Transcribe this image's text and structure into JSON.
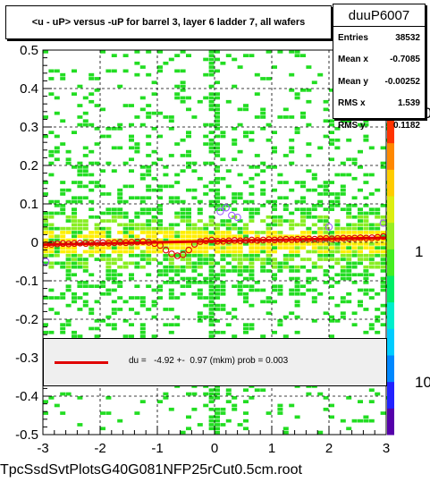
{
  "chart_data": {
    "type": "scatter",
    "title": "<u - uP>       versus  -uP for barrel 3, layer 6 ladder 7, all wafers",
    "xlim": [
      -3,
      3
    ],
    "ylim": [
      -0.5,
      0.5
    ],
    "x_ticks": [
      "-3",
      "-2",
      "-1",
      "0",
      "1",
      "2",
      "3"
    ],
    "y_ticks": [
      "-0.5",
      "-0.4",
      "-0.3",
      "-0.2",
      "-0.1",
      "0",
      "0.1",
      "0.2",
      "0.3",
      "0.4",
      "0.5"
    ],
    "z_scale": "log",
    "z_ticks": [
      "10",
      "1",
      "10"
    ],
    "grid": true,
    "profile": {
      "x": [
        -2.95,
        -2.85,
        -2.75,
        -2.65,
        -2.55,
        -2.45,
        -2.35,
        -2.25,
        -2.15,
        -2.05,
        -1.95,
        -1.85,
        -1.75,
        -1.65,
        -1.55,
        -1.45,
        -1.35,
        -1.25,
        -1.15,
        -1.05,
        -0.95,
        -0.85,
        -0.75,
        -0.65,
        -0.55,
        -0.45,
        -0.35,
        -0.25,
        -0.15,
        -0.05,
        0.05,
        0.15,
        0.25,
        0.35,
        0.45,
        0.55,
        0.65,
        0.75,
        0.85,
        0.95,
        1.05,
        1.15,
        1.25,
        1.35,
        1.45,
        1.55,
        1.65,
        1.75,
        1.85,
        1.95,
        2.05,
        2.15,
        2.25,
        2.35,
        2.45,
        2.55,
        2.65,
        2.75,
        2.85,
        2.95
      ],
      "y": [
        -0.006,
        -0.005,
        -0.004,
        -0.003,
        -0.004,
        -0.003,
        -0.002,
        -0.003,
        -0.002,
        -0.002,
        -0.001,
        -0.002,
        -0.001,
        0.0,
        -0.001,
        0.0,
        0.001,
        0.002,
        0.0,
        -0.003,
        -0.008,
        -0.02,
        -0.03,
        -0.035,
        -0.032,
        -0.02,
        -0.005,
        0.002,
        0.004,
        0.006,
        0.003,
        0.003,
        0.004,
        0.005,
        0.004,
        0.005,
        0.006,
        0.005,
        0.006,
        0.007,
        0.006,
        0.007,
        0.008,
        0.007,
        0.008,
        0.008,
        0.009,
        0.008,
        0.009,
        0.01,
        0.009,
        0.01,
        0.011,
        0.01,
        0.011,
        0.012,
        0.011,
        0.012,
        0.013,
        0.015
      ]
    },
    "outliers": {
      "x": [
        0.1,
        0.2,
        0.3,
        0.4,
        2.0,
        2.95,
        -2.95
      ],
      "y": [
        0.08,
        0.09,
        0.07,
        0.065,
        0.04,
        0.05,
        -0.05
      ]
    },
    "fit": {
      "x": [
        -3,
        3
      ],
      "y": [
        -0.006,
        0.012
      ]
    }
  },
  "labels": {
    "title": "<u - uP>       versus  -uP for barrel 3, layer 6 ladder 7, all wafers",
    "stats_name": "duuP6007",
    "entries_label": "Entries",
    "entries_value": "38532",
    "meanx_label": "Mean x",
    "meanx_value": "-0.7085",
    "meany_label": "Mean y",
    "meany_value": "-0.00252",
    "rmsx_label": "RMS x",
    "rmsx_value": "1.539",
    "rmsy_label": "RMS y",
    "rmsy_value": "0.1182",
    "fit_text": "du =   -4.92 +-  0.97 (mkm) prob = 0.003",
    "file_name": "TpcSsdSvtPlotsG40G081NFP25rCut0.5cm.root"
  },
  "colors": {
    "background_fill": "#22cc22",
    "density_low": "#22dd22",
    "density_mid": "#88ee22",
    "density_high": "#ffee00",
    "fit_line": "#e00000",
    "profile_marker": "#e00000",
    "outlier_marker": "#a060ff",
    "palette": [
      "#5500aa",
      "#2222ff",
      "#0088ff",
      "#00ccff",
      "#00eecc",
      "#00ee66",
      "#44ee22",
      "#99ee22",
      "#ddee11",
      "#ffcc00",
      "#ff8800",
      "#ff3300"
    ]
  }
}
